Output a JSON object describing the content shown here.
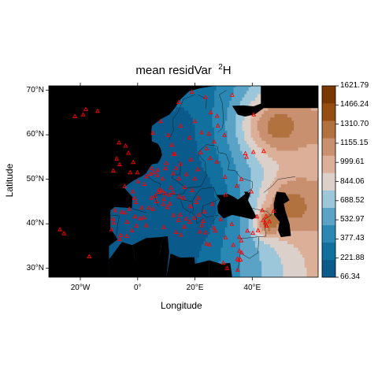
{
  "title": {
    "main": "mean residVar",
    "superscript": "2",
    "element": "H"
  },
  "xlabel": "Longitude",
  "ylabel": "Latitude",
  "x_ticks": [
    {
      "value": -20,
      "label": "20°W"
    },
    {
      "value": 0,
      "label": "0°"
    },
    {
      "value": 20,
      "label": "20°E"
    },
    {
      "value": 40,
      "label": "40°E"
    }
  ],
  "y_ticks": [
    {
      "value": 30,
      "label": "30°N"
    },
    {
      "value": 40,
      "label": "40°N"
    },
    {
      "value": 50,
      "label": "50°N"
    },
    {
      "value": 60,
      "label": "60°N"
    },
    {
      "value": 70,
      "label": "70°N"
    }
  ],
  "extent": {
    "lon": [
      -31,
      63
    ],
    "lat": [
      28,
      71
    ]
  },
  "colorbar": {
    "levels": [
      66.34,
      221.88,
      377.43,
      532.97,
      688.52,
      844.06,
      999.61,
      1155.15,
      1310.7,
      1466.24,
      1621.79
    ],
    "labels": [
      "66.34",
      "221.88",
      "377.43",
      "532.97",
      "688.52",
      "844.06",
      "999.61",
      "1155.15",
      "1310.70",
      "1466.24",
      "1621.79"
    ],
    "colors": [
      "#0a5a8c",
      "#12709f",
      "#2b88b4",
      "#5aa3c6",
      "#9cc6da",
      "#dcd0ca",
      "#dcaf99",
      "#c8906f",
      "#b2723f",
      "#964d12",
      "#7a3800"
    ]
  },
  "colors": {
    "land_mask": "#000000",
    "sea": "#5aa3c6",
    "points": "#ff0000"
  },
  "chart_data": {
    "type": "map",
    "title": "mean residVar 2H",
    "xlabel": "Longitude",
    "ylabel": "Latitude",
    "xlim": [
      -31,
      63
    ],
    "ylim": [
      28,
      71
    ],
    "contour_levels": [
      66.34,
      221.88,
      377.43,
      532.97,
      688.52,
      844.06,
      999.61,
      1155.15,
      1310.7,
      1466.24,
      1621.79
    ],
    "field_trend": "low residual variance over western and central Europe and the Mediterranean, rising eastward to highest values over Russia and the Caucasus",
    "stations": [
      [
        -27.1,
        38.7
      ],
      [
        -25.7,
        37.8
      ],
      [
        -16.9,
        32.6
      ],
      [
        -9.1,
        38.7
      ],
      [
        -8.6,
        41.1
      ],
      [
        -6.3,
        36.5
      ],
      [
        -5.9,
        37.4
      ],
      [
        -3.7,
        40.4
      ],
      [
        -2.9,
        43.3
      ],
      [
        -0.9,
        41.6
      ],
      [
        0.9,
        41.2
      ],
      [
        2.2,
        41.4
      ],
      [
        -7.9,
        43.0
      ],
      [
        -4.5,
        42.5
      ],
      [
        -2.0,
        38.5
      ],
      [
        -1.1,
        45.7
      ],
      [
        1.4,
        43.6
      ],
      [
        2.3,
        48.9
      ],
      [
        4.8,
        45.8
      ],
      [
        5.4,
        43.3
      ],
      [
        7.3,
        47.1
      ],
      [
        6.1,
        46.2
      ],
      [
        8.5,
        47.4
      ],
      [
        7.6,
        47.6
      ],
      [
        9.2,
        45.5
      ],
      [
        11.3,
        44.5
      ],
      [
        12.5,
        41.9
      ],
      [
        14.3,
        40.8
      ],
      [
        15.1,
        37.5
      ],
      [
        13.4,
        38.1
      ],
      [
        9.1,
        39.2
      ],
      [
        16.4,
        48.2
      ],
      [
        11.6,
        48.1
      ],
      [
        13.4,
        52.5
      ],
      [
        10.0,
        53.6
      ],
      [
        8.7,
        50.1
      ],
      [
        6.9,
        50.9
      ],
      [
        4.4,
        51.2
      ],
      [
        4.9,
        52.4
      ],
      [
        -0.1,
        51.5
      ],
      [
        -2.6,
        51.5
      ],
      [
        -3.2,
        55.9
      ],
      [
        -6.3,
        53.3
      ],
      [
        -8.5,
        51.9
      ],
      [
        -7.3,
        54.6
      ],
      [
        -1.5,
        53.8
      ],
      [
        -4.2,
        57.5
      ],
      [
        -6.5,
        58.2
      ],
      [
        5.3,
        60.4
      ],
      [
        10.7,
        59.9
      ],
      [
        18.1,
        59.3
      ],
      [
        12.0,
        57.7
      ],
      [
        13.0,
        55.6
      ],
      [
        12.6,
        55.7
      ],
      [
        24.9,
        60.2
      ],
      [
        22.3,
        60.5
      ],
      [
        25.5,
        65.0
      ],
      [
        27.7,
        64.2
      ],
      [
        18.9,
        69.6
      ],
      [
        23.7,
        68.4
      ],
      [
        14.4,
        67.3
      ],
      [
        24.1,
        56.9
      ],
      [
        25.3,
        54.7
      ],
      [
        21.0,
        52.2
      ],
      [
        19.9,
        50.1
      ],
      [
        17.0,
        51.1
      ],
      [
        14.4,
        50.1
      ],
      [
        19.0,
        47.5
      ],
      [
        21.2,
        45.8
      ],
      [
        26.1,
        44.4
      ],
      [
        23.3,
        42.7
      ],
      [
        20.5,
        44.8
      ],
      [
        18.4,
        43.9
      ],
      [
        16.0,
        45.8
      ],
      [
        14.5,
        46.1
      ],
      [
        19.8,
        41.3
      ],
      [
        21.4,
        42.0
      ],
      [
        22.9,
        40.6
      ],
      [
        23.7,
        38.0
      ],
      [
        21.7,
        38.2
      ],
      [
        25.1,
        35.3
      ],
      [
        27.1,
        38.4
      ],
      [
        29.0,
        41.0
      ],
      [
        32.9,
        39.9
      ],
      [
        30.7,
        36.9
      ],
      [
        35.5,
        37.0
      ],
      [
        36.2,
        36.2
      ],
      [
        35.5,
        33.9
      ],
      [
        35.2,
        31.8
      ],
      [
        34.8,
        32.1
      ],
      [
        34.9,
        29.6
      ],
      [
        35.9,
        31.9
      ],
      [
        36.3,
        33.5
      ],
      [
        33.4,
        35.2
      ],
      [
        31.2,
        30.0
      ],
      [
        29.9,
        31.2
      ],
      [
        30.5,
        50.5
      ],
      [
        36.2,
        50.0
      ],
      [
        34.6,
        48.5
      ],
      [
        30.7,
        46.5
      ],
      [
        27.6,
        53.9
      ],
      [
        37.6,
        55.8
      ],
      [
        30.3,
        59.9
      ],
      [
        39.7,
        47.2
      ],
      [
        38.0,
        55.0
      ],
      [
        44.0,
        56.3
      ],
      [
        40.4,
        56.1
      ],
      [
        43.5,
        43.0
      ],
      [
        44.8,
        41.7
      ],
      [
        44.5,
        40.2
      ],
      [
        46.0,
        40.5
      ],
      [
        45.0,
        39.5
      ],
      [
        43.8,
        40.8
      ],
      [
        41.6,
        41.6
      ],
      [
        40.2,
        37.9
      ],
      [
        38.3,
        38.4
      ],
      [
        42.0,
        38.5
      ],
      [
        47.5,
        42.9
      ],
      [
        33.0,
        68.9
      ],
      [
        40.5,
        64.5
      ],
      [
        -21.9,
        64.1
      ],
      [
        -19.0,
        64.5
      ],
      [
        -14.0,
        65.3
      ],
      [
        -18.1,
        65.7
      ],
      [
        8.0,
        63.0
      ],
      [
        15.0,
        62.0
      ],
      [
        20.0,
        63.0
      ],
      [
        11.0,
        46.5
      ],
      [
        12.3,
        47.0
      ],
      [
        9.5,
        46.8
      ],
      [
        6.6,
        45.0
      ],
      [
        3.9,
        43.6
      ],
      [
        -0.6,
        44.8
      ],
      [
        -1.7,
        47.2
      ],
      [
        -4.5,
        48.4
      ],
      [
        0.1,
        49.5
      ],
      [
        3.1,
        50.6
      ],
      [
        5.6,
        51.5
      ],
      [
        7.0,
        52.0
      ],
      [
        9.7,
        52.4
      ],
      [
        12.4,
        51.3
      ],
      [
        15.0,
        53.4
      ],
      [
        18.6,
        54.4
      ],
      [
        22.0,
        56.0
      ],
      [
        26.7,
        58.4
      ],
      [
        28.0,
        62.0
      ],
      [
        -8.4,
        40.2
      ],
      [
        -5.6,
        42.6
      ],
      [
        -3.8,
        37.2
      ],
      [
        -0.4,
        39.5
      ],
      [
        3.0,
        39.6
      ],
      [
        8.9,
        44.4
      ],
      [
        10.4,
        43.7
      ],
      [
        16.9,
        41.1
      ],
      [
        18.2,
        40.4
      ],
      [
        16.3,
        39.3
      ],
      [
        14.8,
        42.0
      ],
      [
        22.4,
        39.6
      ],
      [
        26.6,
        39.1
      ],
      [
        24.0,
        35.5
      ]
    ]
  }
}
